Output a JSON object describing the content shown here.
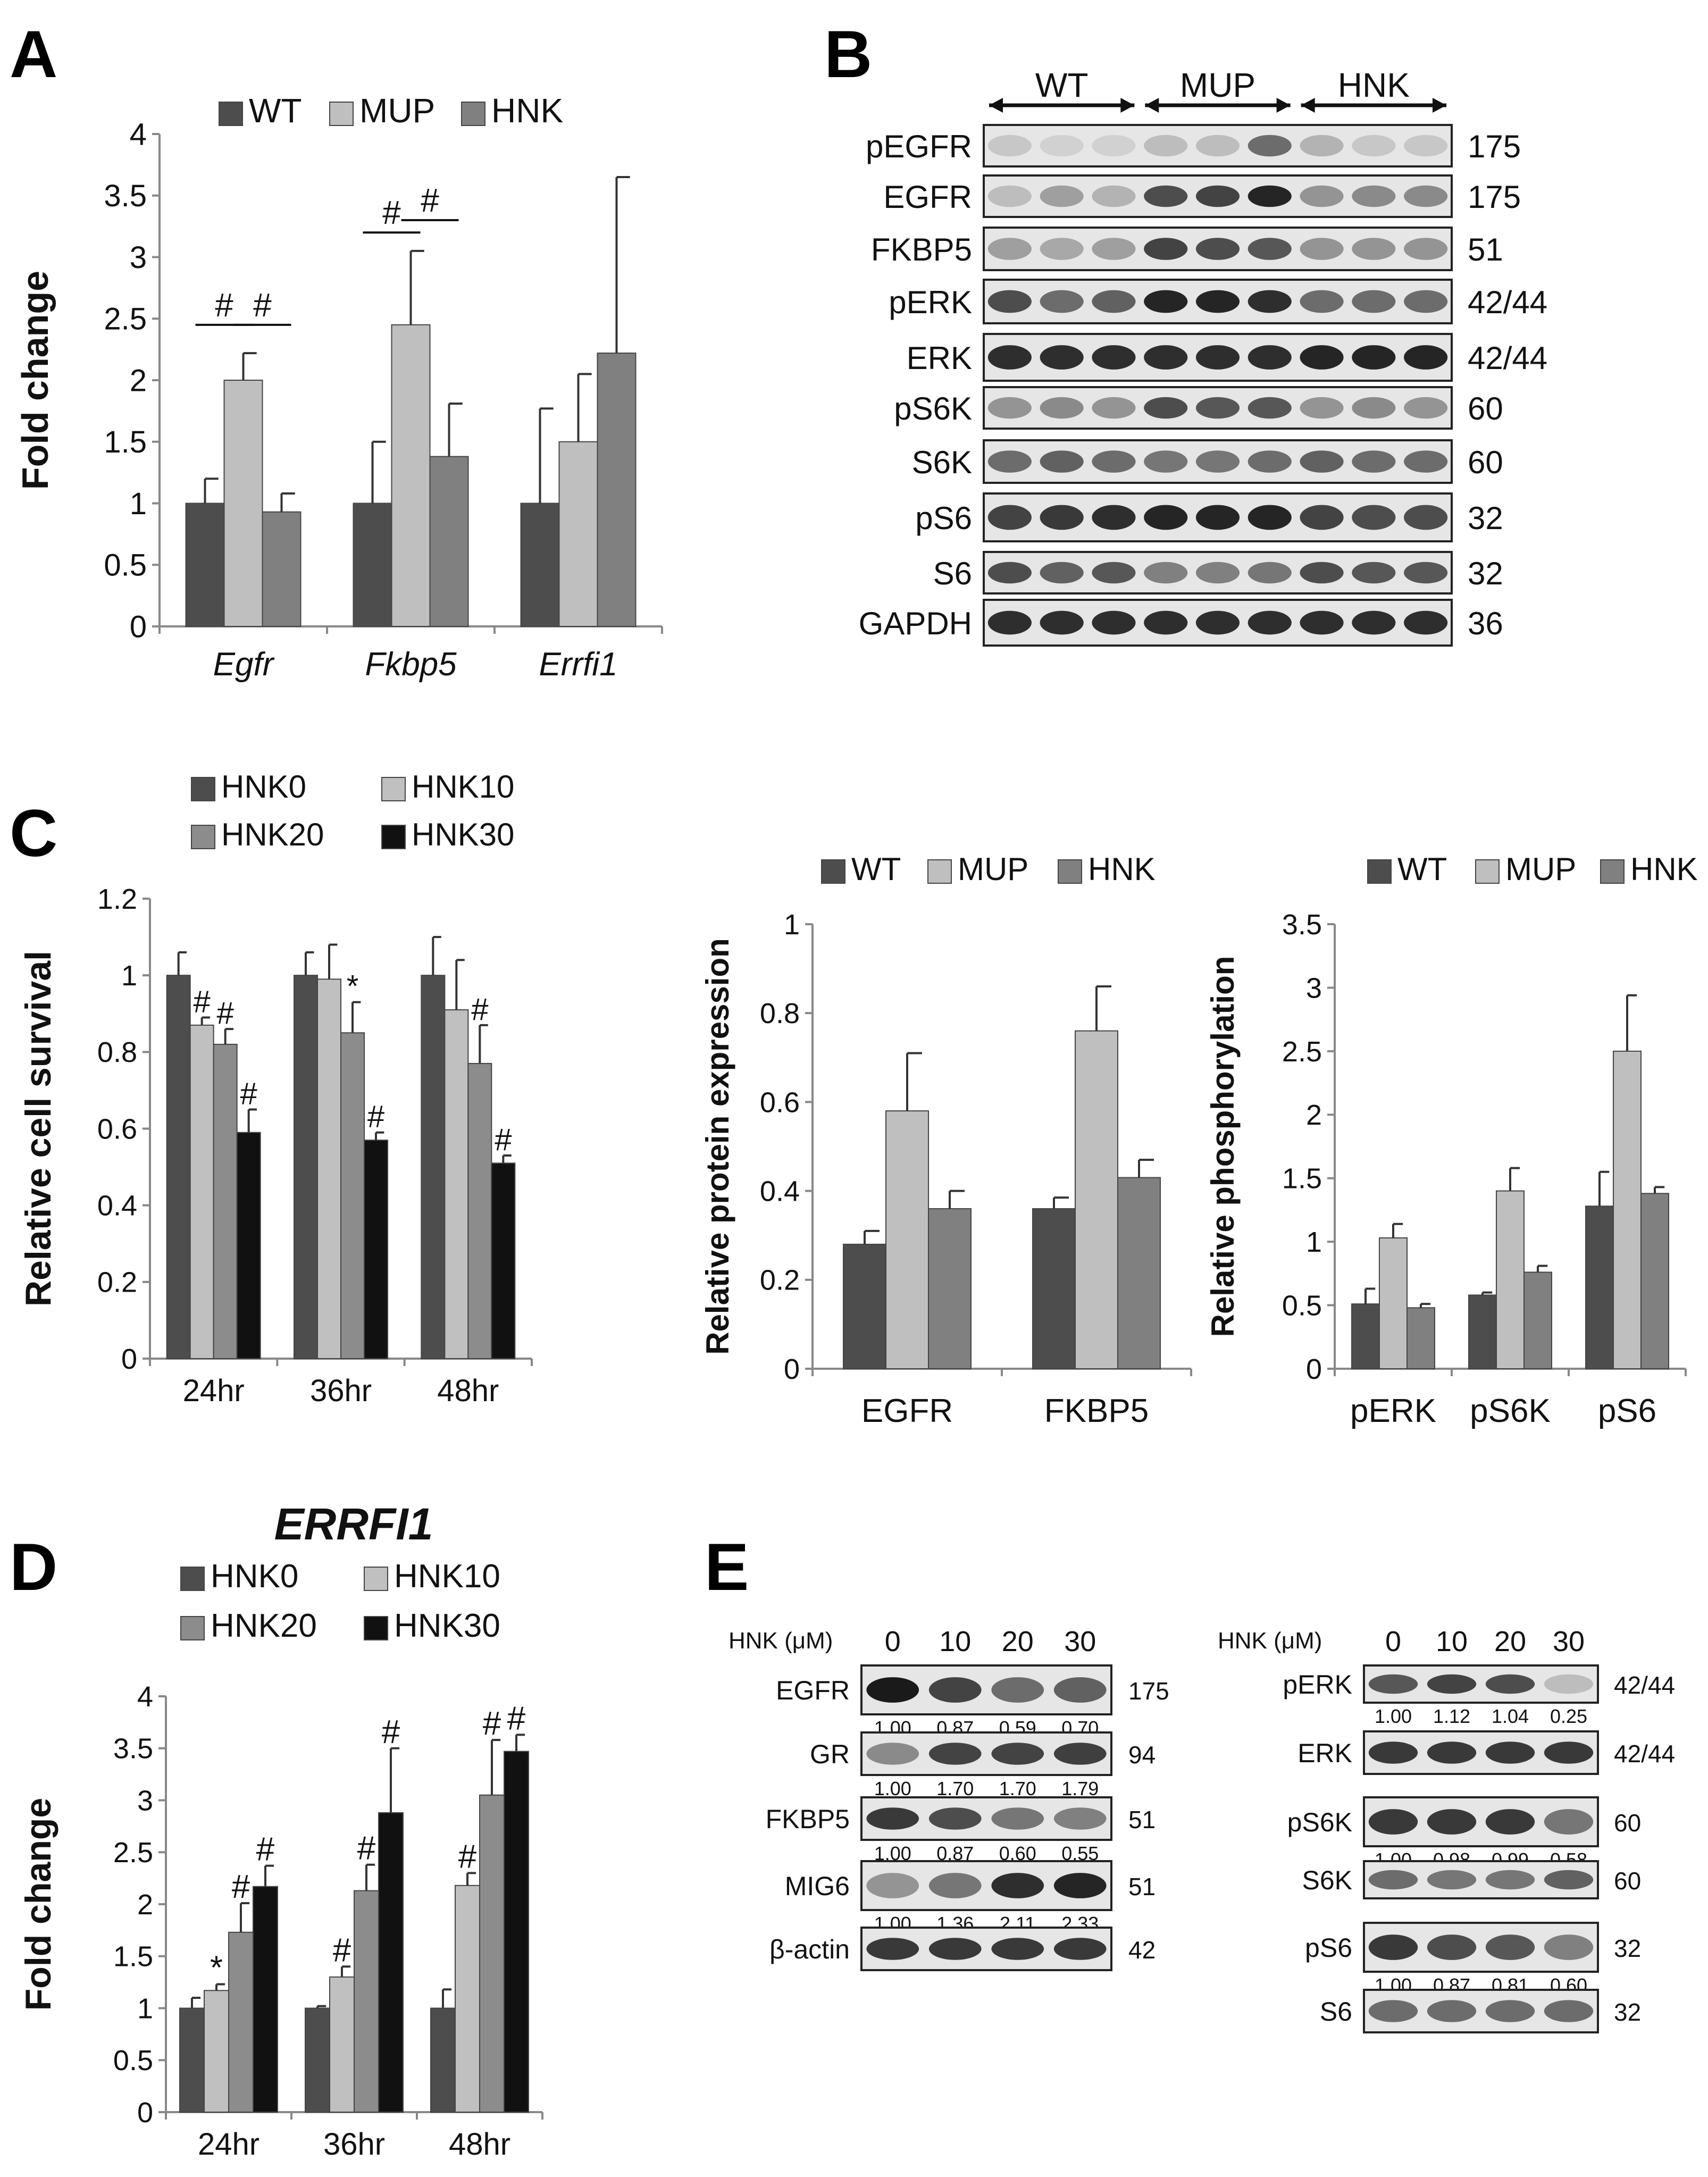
{
  "colors": {
    "wt": "#4d4d4d",
    "mup": "#bfbfbf",
    "hnk": "#808080",
    "hnk0": "#4d4d4d",
    "hnk10": "#c0c0c0",
    "hnk20": "#8c8c8c",
    "hnk30": "#111111",
    "blot_bg": "#e6e6e6",
    "band": "#1a1a1a"
  },
  "panel_labels": {
    "a": "A",
    "b": "B",
    "c": "C",
    "d": "D",
    "e": "E"
  },
  "chart_data": [
    {
      "id": "A",
      "type": "bar",
      "title": "",
      "legend": [
        "WT",
        "MUP",
        "HNK"
      ],
      "legend_position": "top",
      "categories": [
        "Egfr",
        "Fkbp5",
        "Errfi1"
      ],
      "categories_italic": true,
      "series": [
        {
          "name": "WT",
          "values": [
            1.0,
            1.0,
            1.0
          ],
          "errors": [
            0.2,
            0.5,
            0.77
          ]
        },
        {
          "name": "MUP",
          "values": [
            2.0,
            2.45,
            1.5
          ],
          "errors": [
            0.22,
            0.6,
            0.55
          ]
        },
        {
          "name": "HNK",
          "values": [
            0.93,
            1.38,
            2.22
          ],
          "errors": [
            0.15,
            0.43,
            1.43
          ]
        }
      ],
      "ylabel": "Fold change",
      "ylim": [
        0,
        4
      ],
      "yticks": [
        "0",
        "0.5",
        "1",
        "1.5",
        "2",
        "2.5",
        "3",
        "3.5",
        "4"
      ],
      "annotations": [
        {
          "text": "#",
          "category": 0,
          "from": 0,
          "to": 1,
          "y": 2.45
        },
        {
          "text": "#",
          "category": 0,
          "from": 1,
          "to": 2,
          "y": 2.45
        },
        {
          "text": "#",
          "category": 1,
          "from": 0,
          "to": 1,
          "y": 3.2
        },
        {
          "text": "#",
          "category": 1,
          "from": 1,
          "to": 2,
          "y": 3.3
        }
      ]
    },
    {
      "id": "C1",
      "type": "bar",
      "title": "",
      "legend": [
        "HNK0",
        "HNK10",
        "HNK20",
        "HNK30"
      ],
      "legend_position": "top-left",
      "categories": [
        "24hr",
        "36hr",
        "48hr"
      ],
      "series": [
        {
          "name": "HNK0",
          "values": [
            1.0,
            1.0,
            1.0
          ],
          "errors": [
            0.06,
            0.06,
            0.1
          ],
          "marks": [
            "",
            "",
            ""
          ]
        },
        {
          "name": "HNK10",
          "values": [
            0.87,
            0.99,
            0.91
          ],
          "errors": [
            0.02,
            0.09,
            0.13
          ],
          "marks": [
            "#",
            "",
            ""
          ]
        },
        {
          "name": "HNK20",
          "values": [
            0.82,
            0.85,
            0.77
          ],
          "errors": [
            0.04,
            0.08,
            0.1
          ],
          "marks": [
            "#",
            "*",
            "#"
          ]
        },
        {
          "name": "HNK30",
          "values": [
            0.59,
            0.57,
            0.51
          ],
          "errors": [
            0.06,
            0.02,
            0.02
          ],
          "marks": [
            "#",
            "#",
            "#"
          ]
        }
      ],
      "ylabel": "Relative cell survival",
      "ylim": [
        0,
        1.2
      ],
      "yticks": [
        "0",
        "0.2",
        "0.4",
        "0.6",
        "0.8",
        "1",
        "1.2"
      ]
    },
    {
      "id": "C2",
      "type": "bar",
      "title": "",
      "legend": [
        "WT",
        "MUP",
        "HNK"
      ],
      "legend_position": "top",
      "categories": [
        "EGFR",
        "FKBP5"
      ],
      "series": [
        {
          "name": "WT",
          "values": [
            0.28,
            0.36
          ],
          "errors": [
            0.03,
            0.025
          ]
        },
        {
          "name": "MUP",
          "values": [
            0.58,
            0.76
          ],
          "errors": [
            0.13,
            0.1
          ]
        },
        {
          "name": "HNK",
          "values": [
            0.36,
            0.43
          ],
          "errors": [
            0.04,
            0.04
          ]
        }
      ],
      "ylabel": "Relative protein expression",
      "ylim": [
        0,
        1
      ],
      "yticks": [
        "0",
        "0.2",
        "0.4",
        "0.6",
        "0.8",
        "1"
      ]
    },
    {
      "id": "C3",
      "type": "bar",
      "title": "",
      "legend": [
        "WT",
        "MUP",
        "HNK"
      ],
      "legend_position": "top",
      "categories": [
        "pERK",
        "pS6K",
        "pS6"
      ],
      "series": [
        {
          "name": "WT",
          "values": [
            0.51,
            0.58,
            1.28
          ],
          "errors": [
            0.12,
            0.02,
            0.27
          ]
        },
        {
          "name": "MUP",
          "values": [
            1.03,
            1.4,
            2.5
          ],
          "errors": [
            0.11,
            0.18,
            0.44
          ]
        },
        {
          "name": "HNK",
          "values": [
            0.48,
            0.76,
            1.38
          ],
          "errors": [
            0.03,
            0.05,
            0.05
          ]
        }
      ],
      "ylabel": "Relative phosphorylation",
      "ylim": [
        0,
        3.5
      ],
      "yticks": [
        "0",
        "0.5",
        "1",
        "1.5",
        "2",
        "2.5",
        "3",
        "3.5"
      ]
    },
    {
      "id": "D",
      "type": "bar",
      "title": "ERRFI1",
      "legend": [
        "HNK0",
        "HNK10",
        "HNK20",
        "HNK30"
      ],
      "legend_position": "top",
      "categories": [
        "24hr",
        "36hr",
        "48hr"
      ],
      "series": [
        {
          "name": "HNK0",
          "values": [
            1.0,
            1.0,
            1.0
          ],
          "errors": [
            0.1,
            0.02,
            0.18
          ],
          "marks": [
            "",
            "",
            ""
          ]
        },
        {
          "name": "HNK10",
          "values": [
            1.17,
            1.3,
            2.18
          ],
          "errors": [
            0.06,
            0.1,
            0.12
          ],
          "marks": [
            "*",
            "#",
            "#"
          ]
        },
        {
          "name": "HNK20",
          "values": [
            1.73,
            2.13,
            3.05
          ],
          "errors": [
            0.28,
            0.25,
            0.53
          ],
          "marks": [
            "#",
            "#",
            "#"
          ]
        },
        {
          "name": "HNK30",
          "values": [
            2.17,
            2.88,
            3.47
          ],
          "errors": [
            0.2,
            0.62,
            0.16
          ],
          "marks": [
            "#",
            "#",
            "#"
          ]
        }
      ],
      "ylabel": "Fold change",
      "ylim": [
        0,
        4
      ],
      "yticks": [
        "0",
        "0.5",
        "1",
        "1.5",
        "2",
        "2.5",
        "3",
        "3.5",
        "4"
      ]
    }
  ],
  "blot_b": {
    "groups": [
      "WT",
      "MUP",
      "HNK"
    ],
    "rows": [
      {
        "label": "pEGFR",
        "kda": "175",
        "intensities": [
          0.15,
          0.1,
          0.1,
          0.2,
          0.2,
          0.6,
          0.25,
          0.15,
          0.15
        ]
      },
      {
        "label": "EGFR",
        "kda": "175",
        "intensities": [
          0.2,
          0.35,
          0.25,
          0.75,
          0.8,
          0.95,
          0.4,
          0.45,
          0.45
        ]
      },
      {
        "label": "FKBP5",
        "kda": "51",
        "intensities": [
          0.35,
          0.3,
          0.35,
          0.8,
          0.75,
          0.7,
          0.4,
          0.4,
          0.4
        ]
      },
      {
        "label": "pERK",
        "kda": "42/44",
        "intensities": [
          0.75,
          0.6,
          0.65,
          0.95,
          0.95,
          0.9,
          0.6,
          0.6,
          0.6
        ]
      },
      {
        "label": "ERK",
        "kda": "42/44",
        "intensities": [
          0.9,
          0.9,
          0.9,
          0.9,
          0.9,
          0.9,
          0.95,
          0.95,
          0.95
        ]
      },
      {
        "label": "pS6K",
        "kda": "60",
        "intensities": [
          0.4,
          0.45,
          0.4,
          0.75,
          0.7,
          0.7,
          0.4,
          0.45,
          0.4
        ]
      },
      {
        "label": "S6K",
        "kda": "60",
        "intensities": [
          0.6,
          0.65,
          0.6,
          0.55,
          0.55,
          0.6,
          0.65,
          0.6,
          0.6
        ]
      },
      {
        "label": "pS6",
        "kda": "32",
        "intensities": [
          0.8,
          0.85,
          0.9,
          0.95,
          0.95,
          0.95,
          0.8,
          0.75,
          0.75
        ]
      },
      {
        "label": "S6",
        "kda": "32",
        "intensities": [
          0.75,
          0.65,
          0.7,
          0.5,
          0.5,
          0.55,
          0.75,
          0.7,
          0.7
        ]
      },
      {
        "label": "GAPDH",
        "kda": "36",
        "intensities": [
          0.9,
          0.9,
          0.9,
          0.9,
          0.9,
          0.9,
          0.9,
          0.9,
          0.9
        ]
      }
    ]
  },
  "blot_e": {
    "header_label": "HNK (μM)",
    "doses": [
      "0",
      "10",
      "20",
      "30"
    ],
    "left_rows": [
      {
        "label": "EGFR",
        "kda": "175",
        "quant": [
          "1.00",
          "0.87",
          "0.59",
          "0.70"
        ],
        "intensities": [
          1.0,
          0.8,
          0.6,
          0.65
        ]
      },
      {
        "label": "GR",
        "kda": "94",
        "quant": [
          "1.00",
          "1.70",
          "1.70",
          "1.79"
        ],
        "intensities": [
          0.45,
          0.8,
          0.8,
          0.82
        ]
      },
      {
        "label": "FKBP5",
        "kda": "51",
        "quant": [
          "1.00",
          "0.87",
          "0.60",
          "0.55"
        ],
        "intensities": [
          0.85,
          0.75,
          0.55,
          0.5
        ]
      },
      {
        "label": "MIG6",
        "kda": "51",
        "quant": [
          "1.00",
          "1.36",
          "2.11",
          "2.33"
        ],
        "intensities": [
          0.4,
          0.55,
          0.9,
          0.95
        ]
      },
      {
        "label": "β-actin",
        "kda": "42",
        "quant": [],
        "intensities": [
          0.85,
          0.85,
          0.85,
          0.85
        ]
      }
    ],
    "right_rows": [
      {
        "label": "pERK",
        "kda": "42/44",
        "quant": [
          "1.00",
          "1.12",
          "1.04",
          "0.25"
        ],
        "intensities": [
          0.7,
          0.8,
          0.75,
          0.2
        ]
      },
      {
        "label": "ERK",
        "kda": "42/44",
        "quant": [],
        "intensities": [
          0.85,
          0.85,
          0.85,
          0.85
        ]
      },
      {
        "label": "pS6K",
        "kda": "60",
        "quant": [
          "1.00",
          "0.98",
          "0.99",
          "0.58"
        ],
        "intensities": [
          0.85,
          0.85,
          0.85,
          0.55
        ]
      },
      {
        "label": "S6K",
        "kda": "60",
        "quant": [],
        "intensities": [
          0.6,
          0.55,
          0.55,
          0.65
        ]
      },
      {
        "label": "pS6",
        "kda": "32",
        "quant": [
          "1.00",
          "0.87",
          "0.81",
          "0.60"
        ],
        "intensities": [
          0.85,
          0.75,
          0.7,
          0.5
        ]
      },
      {
        "label": "S6",
        "kda": "32",
        "quant": [],
        "intensities": [
          0.6,
          0.6,
          0.6,
          0.6
        ]
      }
    ]
  }
}
